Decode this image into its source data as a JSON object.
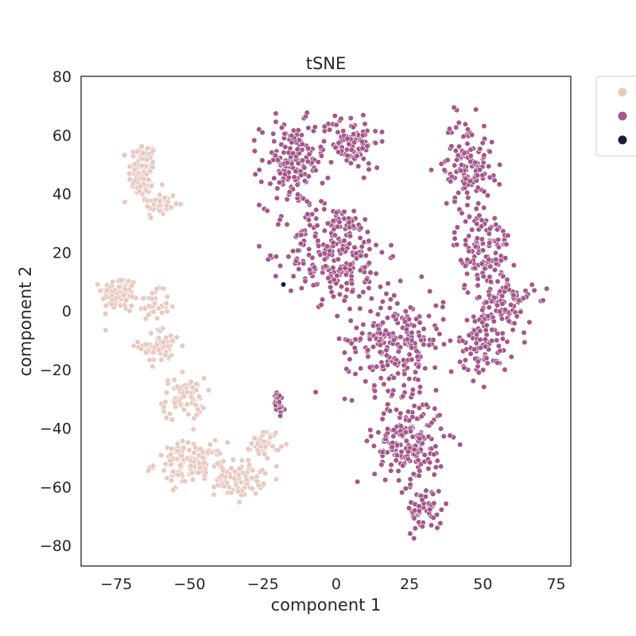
{
  "chart_data": {
    "type": "scatter",
    "title": "tSNE",
    "xlabel": "component 1",
    "ylabel": "component 2",
    "xlim": [
      -87,
      80
    ],
    "ylim": [
      -87,
      80
    ],
    "xticks": [
      -75,
      -50,
      -25,
      0,
      25,
      50,
      75
    ],
    "xtick_labels": [
      "−75",
      "−50",
      "−25",
      "0",
      "25",
      "50",
      "75"
    ],
    "yticks": [
      80,
      60,
      40,
      20,
      0,
      -20,
      -40,
      -60,
      -80
    ],
    "ytick_labels": [
      "80",
      "60",
      "40",
      "20",
      "0",
      "−20",
      "−40",
      "−60",
      "−80"
    ],
    "grid": false,
    "legend_position": "outside-top-right",
    "series": [
      {
        "name": "",
        "color": "#e8c9c0",
        "clusters": [
          {
            "center": [
              -66,
              47
            ],
            "spread": [
              4,
              9
            ],
            "count": 90
          },
          {
            "center": [
              -60,
              36
            ],
            "spread": [
              5,
              4
            ],
            "count": 40
          },
          {
            "center": [
              -74,
              6
            ],
            "spread": [
              5,
              5
            ],
            "count": 90
          },
          {
            "center": [
              -63,
              2
            ],
            "spread": [
              5,
              4
            ],
            "count": 40
          },
          {
            "center": [
              -60,
              -12
            ],
            "spread": [
              6,
              5
            ],
            "count": 60
          },
          {
            "center": [
              -52,
              -30
            ],
            "spread": [
              6,
              6
            ],
            "count": 70
          },
          {
            "center": [
              -50,
              -52
            ],
            "spread": [
              10,
              6
            ],
            "count": 120
          },
          {
            "center": [
              -33,
              -57
            ],
            "spread": [
              7,
              5
            ],
            "count": 90
          },
          {
            "center": [
              -24,
              -45
            ],
            "spread": [
              4,
              4
            ],
            "count": 40
          }
        ]
      },
      {
        "name": "",
        "color": "#a3578a",
        "clusters": [
          {
            "center": [
              -15,
              50
            ],
            "spread": [
              9,
              12
            ],
            "count": 160
          },
          {
            "center": [
              5,
              58
            ],
            "spread": [
              8,
              8
            ],
            "count": 90
          },
          {
            "center": [
              0,
              20
            ],
            "spread": [
              14,
              14
            ],
            "count": 250
          },
          {
            "center": [
              20,
              -10
            ],
            "spread": [
              14,
              14
            ],
            "count": 230
          },
          {
            "center": [
              25,
              -45
            ],
            "spread": [
              10,
              12
            ],
            "count": 200
          },
          {
            "center": [
              30,
              -68
            ],
            "spread": [
              5,
              6
            ],
            "count": 50
          },
          {
            "center": [
              45,
              50
            ],
            "spread": [
              7,
              13
            ],
            "count": 130
          },
          {
            "center": [
              50,
              20
            ],
            "spread": [
              8,
              12
            ],
            "count": 120
          },
          {
            "center": [
              58,
              2
            ],
            "spread": [
              8,
              8
            ],
            "count": 100
          },
          {
            "center": [
              50,
              -12
            ],
            "spread": [
              7,
              8
            ],
            "count": 80
          },
          {
            "center": [
              -20,
              -32
            ],
            "spread": [
              2,
              4
            ],
            "count": 25
          }
        ]
      },
      {
        "name": "",
        "color": "#1f1a3a",
        "points": [
          [
            -18,
            9
          ]
        ]
      }
    ]
  }
}
